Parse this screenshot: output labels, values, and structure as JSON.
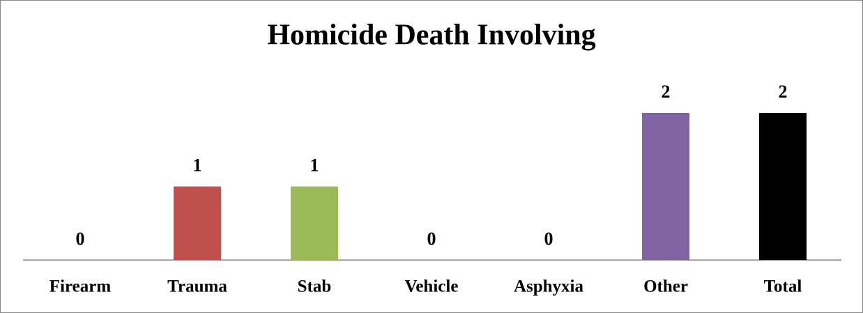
{
  "chart_data": {
    "type": "bar",
    "title": "Homicide Death Involving",
    "categories": [
      "Firearm",
      "Trauma",
      "Stab",
      "Vehicle",
      "Asphyxia",
      "Other",
      "Total"
    ],
    "values": [
      0,
      1,
      1,
      0,
      0,
      2,
      2
    ],
    "colors": [
      "#4f81bd",
      "#c0504d",
      "#9bbb59",
      "#4bacc6",
      "#f79646",
      "#8064a2",
      "#000000"
    ]
  }
}
